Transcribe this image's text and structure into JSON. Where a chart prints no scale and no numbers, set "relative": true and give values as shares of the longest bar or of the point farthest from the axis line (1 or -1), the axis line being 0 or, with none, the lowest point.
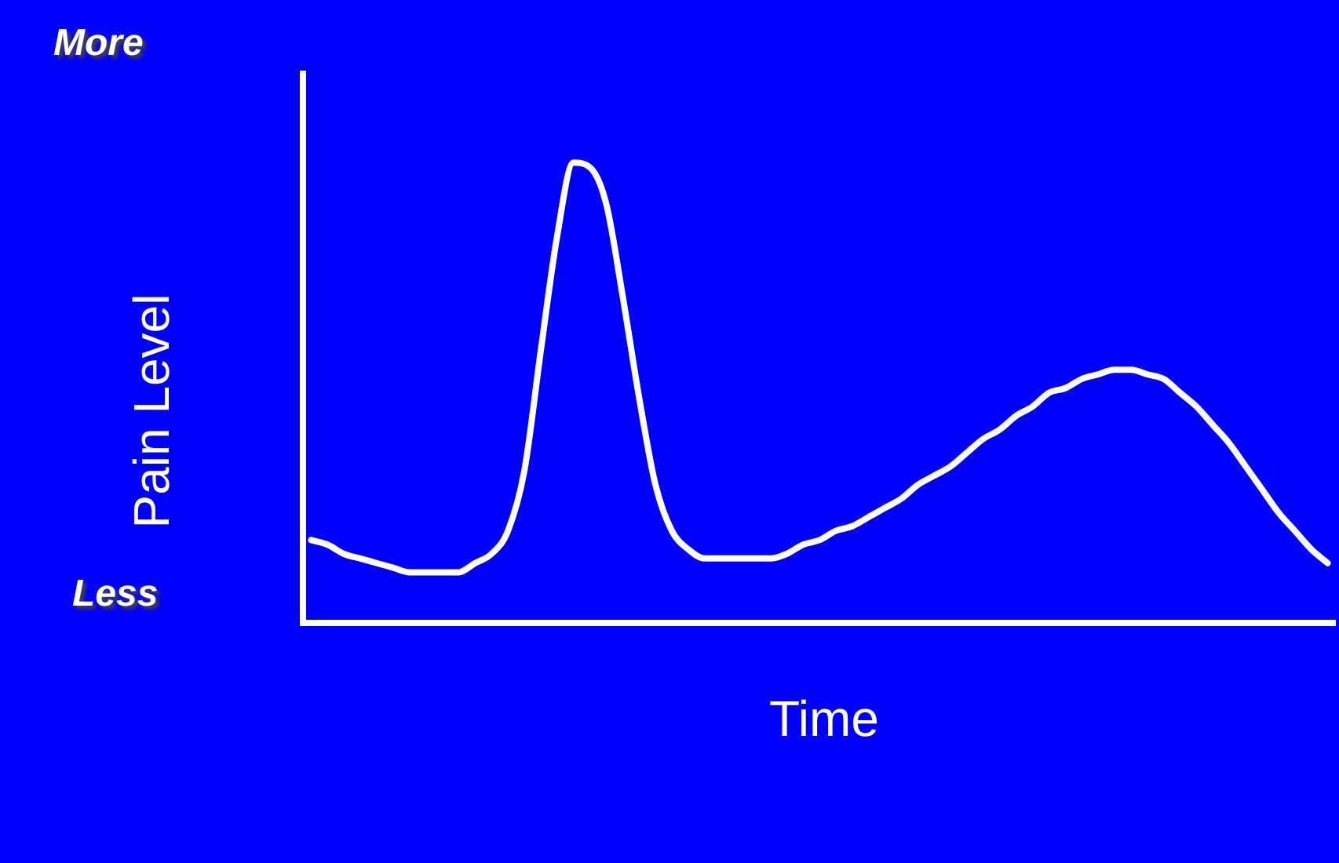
{
  "chart_data": {
    "type": "line",
    "relative": true,
    "xlabel": "Time",
    "ylabel": "Pain Level",
    "annotations": [
      "More",
      "Less"
    ],
    "legend": false,
    "grid": false,
    "marker": "none",
    "line_style": "solid",
    "categories": [
      null,
      null,
      null,
      null,
      null,
      null,
      null,
      null,
      null,
      null,
      null,
      null,
      null,
      null,
      null,
      null,
      null,
      null,
      null,
      null,
      null,
      null,
      null,
      null,
      null,
      null,
      null,
      null,
      null,
      null,
      null,
      null,
      null,
      null,
      null,
      null,
      null,
      null,
      null,
      null,
      null,
      null,
      null,
      null,
      null,
      null,
      null,
      null,
      null,
      null,
      null,
      null,
      null,
      null,
      null,
      null,
      null,
      null,
      null,
      null,
      null,
      null,
      null
    ],
    "series": [
      {
        "color": "#ffffff",
        "values": [
          0.18,
          0.17,
          0.15,
          0.14,
          0.13,
          0.12,
          0.11,
          0.11,
          0.11,
          0.11,
          0.13,
          0.15,
          0.2,
          0.33,
          0.59,
          0.84,
          1,
          0.99,
          0.91,
          0.71,
          0.49,
          0.3,
          0.2,
          0.16,
          0.14,
          0.14,
          0.14,
          0.14,
          0.14,
          0.15,
          0.17,
          0.18,
          0.2,
          0.21,
          0.23,
          0.25,
          0.27,
          0.3,
          0.32,
          0.34,
          0.37,
          0.4,
          0.42,
          0.45,
          0.47,
          0.5,
          0.51,
          0.53,
          0.54,
          0.55,
          0.55,
          0.54,
          0.53,
          0.5,
          0.47,
          0.43,
          0.39,
          0.34,
          0.29,
          0.24,
          0.2,
          0.16,
          0.13
        ]
      }
    ]
  }
}
